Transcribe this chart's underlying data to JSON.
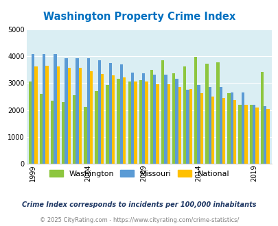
{
  "title": "Washington Property Crime Index",
  "years": [
    1999,
    2000,
    2001,
    2002,
    2003,
    2004,
    2005,
    2006,
    2007,
    2008,
    2009,
    2010,
    2011,
    2012,
    2013,
    2014,
    2015,
    2016,
    2017,
    2018,
    2019,
    2020
  ],
  "washington": [
    3060,
    2600,
    2360,
    2310,
    2550,
    2110,
    2700,
    2940,
    3160,
    3060,
    3110,
    3490,
    3850,
    3360,
    3610,
    3980,
    3730,
    3770,
    2630,
    2200,
    2200,
    3415
  ],
  "missouri": [
    4080,
    4080,
    4080,
    3940,
    3930,
    3920,
    3860,
    3760,
    3700,
    3390,
    3380,
    3310,
    3320,
    3160,
    2750,
    2930,
    2870,
    2870,
    2660,
    2660,
    2200,
    2150
  ],
  "national": [
    3620,
    3640,
    3620,
    3560,
    3570,
    3450,
    3350,
    3280,
    3220,
    3060,
    3060,
    2970,
    2950,
    2870,
    2770,
    2620,
    2500,
    2450,
    2370,
    2200,
    2100,
    2050
  ],
  "washington_color": "#8dc63f",
  "missouri_color": "#5b9bd5",
  "national_color": "#ffc000",
  "bg_color": "#daeef3",
  "ylim": [
    0,
    5000
  ],
  "yticks": [
    0,
    1000,
    2000,
    3000,
    4000,
    5000
  ],
  "xtick_years": [
    1999,
    2004,
    2009,
    2014,
    2019
  ],
  "legend_labels": [
    "Washington",
    "Missouri",
    "National"
  ],
  "footnote1": "Crime Index corresponds to incidents per 100,000 inhabitants",
  "footnote2": "© 2025 CityRating.com - https://www.cityrating.com/crime-statistics/",
  "title_color": "#0070c0",
  "footnote1_color": "#1f3864",
  "footnote2_color": "#808080",
  "bar_width": 0.27
}
